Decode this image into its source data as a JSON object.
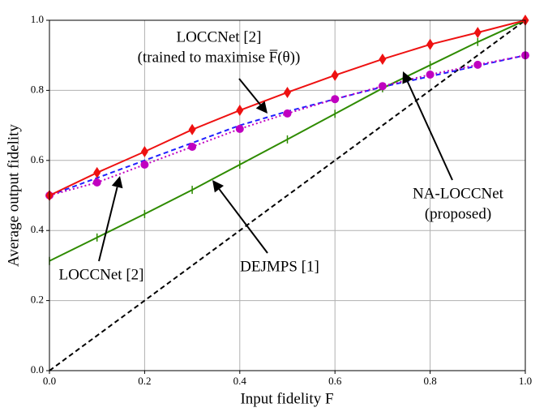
{
  "chart_data": {
    "type": "line",
    "xlabel": "Input fidelity F",
    "ylabel": "Average output fidelity",
    "x": [
      0,
      0.1,
      0.2,
      0.3,
      0.4,
      0.5,
      0.6,
      0.7,
      0.8,
      0.9,
      1
    ],
    "series": [
      {
        "color": "#000000",
        "linestyle": "dashed",
        "marker": "none",
        "values": [
          0,
          0.1,
          0.2,
          0.3,
          0.4,
          0.5,
          0.6,
          0.7,
          0.8,
          0.9,
          1
        ]
      },
      {
        "color": "#2e8b00",
        "linestyle": "solid",
        "marker": "tick",
        "values": [
          0.313,
          0.38,
          0.447,
          0.516,
          0.588,
          0.66,
          0.733,
          0.806,
          0.872,
          0.938,
          1.0
        ]
      },
      {
        "color": "#1f1fff",
        "linestyle": "dashed",
        "marker": "none",
        "values": [
          0.5,
          0.55,
          0.6,
          0.65,
          0.7,
          0.74,
          0.775,
          0.81,
          0.84,
          0.87,
          0.9
        ]
      },
      {
        "color": "#c000c0",
        "linestyle": "dotted",
        "marker": "circle",
        "values": [
          0.5,
          0.537,
          0.588,
          0.639,
          0.69,
          0.734,
          0.775,
          0.812,
          0.845,
          0.873,
          0.9
        ]
      },
      {
        "color": "#ee1111",
        "linestyle": "solid",
        "marker": "diamond",
        "values": [
          0.5,
          0.565,
          0.625,
          0.688,
          0.743,
          0.794,
          0.843,
          0.889,
          0.931,
          0.965,
          1.0
        ]
      }
    ],
    "xlim": [
      0,
      1
    ],
    "ylim": [
      0,
      1
    ],
    "xticks": [
      {
        "value": 0,
        "label": "0.0"
      },
      0.2,
      0.4,
      0.6,
      0.8,
      {
        "value": 1,
        "label": "1.0"
      }
    ],
    "yticks": [
      {
        "value": 0,
        "label": "0.0"
      },
      0.2,
      0.4,
      0.6,
      0.8,
      {
        "value": 1,
        "label": "1.0"
      }
    ],
    "grid": true,
    "annotations": [
      {
        "lines": [
          "LOCCNet [2]",
          "(trained to maximise F̅(θ))"
        ]
      },
      {
        "lines": [
          "NA-LOCCNet",
          "(proposed)"
        ]
      },
      {
        "lines": [
          "DEJMPS [1]"
        ]
      },
      {
        "lines": [
          "LOCCNet [2]"
        ]
      }
    ]
  }
}
